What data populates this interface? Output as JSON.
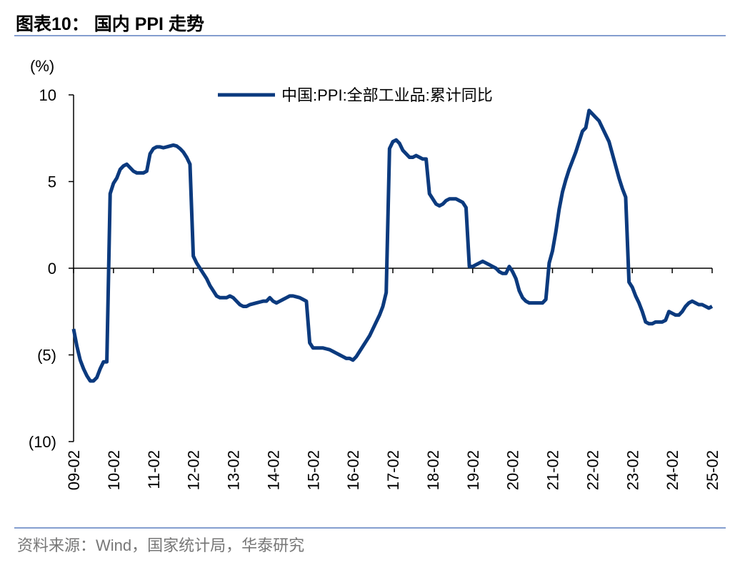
{
  "chart_data": {
    "type": "line",
    "title": "图表10：  国内 PPI 走势",
    "y_unit": "(%)",
    "source": "资料来源：Wind，国家统计局，华泰研究",
    "categories": [
      "09-02",
      null,
      null,
      null,
      null,
      null,
      null,
      null,
      null,
      null,
      null,
      null,
      "10-02",
      null,
      null,
      null,
      null,
      null,
      null,
      null,
      null,
      null,
      null,
      null,
      "11-02",
      null,
      null,
      null,
      null,
      null,
      null,
      null,
      null,
      null,
      null,
      null,
      "12-02",
      null,
      null,
      null,
      null,
      null,
      null,
      null,
      null,
      null,
      null,
      null,
      "13-02",
      null,
      null,
      null,
      null,
      null,
      null,
      null,
      null,
      null,
      null,
      null,
      "14-02",
      null,
      null,
      null,
      null,
      null,
      null,
      null,
      null,
      null,
      null,
      null,
      "15-02",
      null,
      null,
      null,
      null,
      null,
      null,
      null,
      null,
      null,
      null,
      null,
      "16-02",
      null,
      null,
      null,
      null,
      null,
      null,
      null,
      null,
      null,
      null,
      null,
      "17-02",
      null,
      null,
      null,
      null,
      null,
      null,
      null,
      null,
      null,
      null,
      null,
      "18-02",
      null,
      null,
      null,
      null,
      null,
      null,
      null,
      null,
      null,
      null,
      null,
      "19-02",
      null,
      null,
      null,
      null,
      null,
      null,
      null,
      null,
      null,
      null,
      null,
      "20-02",
      null,
      null,
      null,
      null,
      null,
      null,
      null,
      null,
      null,
      null,
      null,
      "21-02",
      null,
      null,
      null,
      null,
      null,
      null,
      null,
      null,
      null,
      null,
      null,
      "22-02",
      null,
      null,
      null,
      null,
      null,
      null,
      null,
      null,
      null,
      null,
      null,
      "23-02",
      null,
      null,
      null,
      null,
      null,
      null,
      null,
      null,
      null,
      null,
      null,
      "24-02",
      null,
      null,
      null,
      null,
      null,
      null,
      null,
      null,
      null,
      null,
      null,
      "25-02"
    ],
    "series": [
      {
        "name": "中国:PPI:全部工业品:累计同比",
        "color": "#0b3a7e",
        "values": [
          -3.5,
          -4.5,
          -5.3,
          -5.8,
          -6.2,
          -6.5,
          -6.5,
          -6.3,
          -5.8,
          -5.4,
          -5.4,
          4.3,
          4.9,
          5.2,
          5.7,
          5.9,
          6.0,
          5.8,
          5.6,
          5.5,
          5.5,
          5.5,
          5.6,
          6.6,
          6.9,
          7.0,
          7.0,
          6.95,
          7.0,
          7.05,
          7.1,
          7.05,
          6.9,
          6.7,
          6.4,
          6.0,
          0.7,
          0.3,
          0.0,
          -0.3,
          -0.6,
          -1.0,
          -1.3,
          -1.6,
          -1.7,
          -1.7,
          -1.7,
          -1.6,
          -1.7,
          -1.9,
          -2.1,
          -2.2,
          -2.2,
          -2.1,
          -2.05,
          -2.0,
          -1.95,
          -1.9,
          -1.9,
          -1.7,
          -1.9,
          -2.0,
          -1.9,
          -1.8,
          -1.7,
          -1.6,
          -1.6,
          -1.65,
          -1.7,
          -1.8,
          -1.9,
          -4.3,
          -4.6,
          -4.6,
          -4.6,
          -4.6,
          -4.65,
          -4.7,
          -4.8,
          -4.9,
          -5.0,
          -5.1,
          -5.2,
          -5.2,
          -5.3,
          -5.1,
          -4.8,
          -4.5,
          -4.2,
          -3.9,
          -3.5,
          -3.1,
          -2.7,
          -2.2,
          -1.4,
          6.9,
          7.3,
          7.4,
          7.2,
          6.8,
          6.6,
          6.4,
          6.4,
          6.5,
          6.4,
          6.3,
          6.3,
          4.3,
          4.0,
          3.7,
          3.6,
          3.7,
          3.9,
          4.0,
          4.0,
          4.0,
          3.9,
          3.8,
          3.5,
          0.1,
          0.1,
          0.2,
          0.3,
          0.4,
          0.3,
          0.2,
          0.1,
          0.0,
          -0.2,
          -0.3,
          -0.3,
          0.1,
          -0.2,
          -0.6,
          -1.3,
          -1.7,
          -1.9,
          -2.0,
          -2.0,
          -2.0,
          -2.0,
          -2.0,
          -1.8,
          0.3,
          1.0,
          2.1,
          3.4,
          4.4,
          5.1,
          5.7,
          6.2,
          6.7,
          7.3,
          7.9,
          8.1,
          9.1,
          8.9,
          8.7,
          8.5,
          8.1,
          7.7,
          7.3,
          6.6,
          5.9,
          5.2,
          4.6,
          4.1,
          -0.8,
          -1.1,
          -1.6,
          -2.0,
          -2.5,
          -3.1,
          -3.2,
          -3.2,
          -3.1,
          -3.1,
          -3.1,
          -3.0,
          -2.5,
          -2.6,
          -2.7,
          -2.7,
          -2.5,
          -2.2,
          -2.0,
          -1.9,
          -2.0,
          -2.1,
          -2.1,
          -2.2,
          -2.3,
          -2.2
        ]
      }
    ],
    "ylim": [
      -10,
      10
    ],
    "yticks": [
      10,
      5,
      0,
      {
        "value": -5,
        "label": "(5)"
      },
      {
        "value": -10,
        "label": "(10)"
      }
    ],
    "grid": false
  }
}
